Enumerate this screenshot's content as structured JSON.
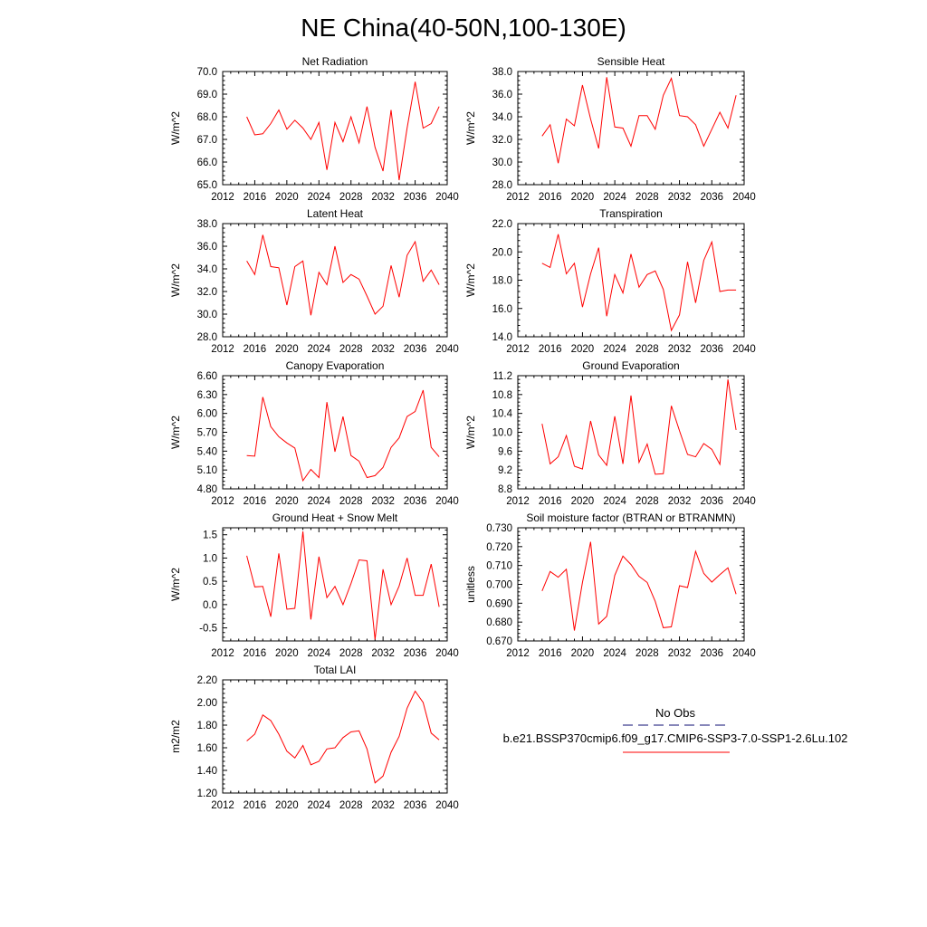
{
  "figure": {
    "title": "NE China(40-50N,100-130E)"
  },
  "legend": {
    "obs_label": "No Obs",
    "obs_color": "#3d3d8f",
    "model_label": "b.e21.BSSP370cmip6.f09_g17.CMIP6-SSP3-7.0-SSP1-2.6Lu.102",
    "model_color": "#ff0000"
  },
  "chart_data": [
    {
      "type": "line",
      "title": "Net Radiation",
      "ylabel": "W/m^2",
      "xlim": [
        2012,
        2040
      ],
      "ylim": [
        65.0,
        70.0
      ],
      "xticks": [
        "2012",
        "2016",
        "2020",
        "2024",
        "2028",
        "2032",
        "2036",
        "2040"
      ],
      "yticks": [
        "65.0",
        "66.0",
        "67.0",
        "68.0",
        "69.0",
        "70.0"
      ],
      "series": [
        {
          "color": "#ff0000",
          "x": [
            2015,
            2016,
            2017,
            2018,
            2019,
            2020,
            2021,
            2022,
            2023,
            2024,
            2025,
            2026,
            2027,
            2028,
            2029,
            2030,
            2031,
            2032,
            2033,
            2034,
            2035,
            2036,
            2037,
            2038,
            2039
          ],
          "y": [
            68.0,
            67.2,
            67.25,
            67.7,
            68.3,
            67.45,
            67.85,
            67.5,
            67.0,
            67.75,
            65.65,
            67.75,
            66.9,
            68.0,
            66.85,
            68.45,
            66.65,
            65.6,
            68.3,
            65.2,
            67.5,
            69.55,
            67.5,
            67.7,
            68.45
          ]
        }
      ]
    },
    {
      "type": "line",
      "title": "Sensible Heat",
      "ylabel": "W/m^2",
      "xlim": [
        2012,
        2040
      ],
      "ylim": [
        28.0,
        38.0
      ],
      "xticks": [
        "2012",
        "2016",
        "2020",
        "2024",
        "2028",
        "2032",
        "2036",
        "2040"
      ],
      "yticks": [
        "28.0",
        "30.0",
        "32.0",
        "34.0",
        "36.0",
        "38.0"
      ],
      "series": [
        {
          "color": "#ff0000",
          "x": [
            2015,
            2016,
            2017,
            2018,
            2019,
            2020,
            2021,
            2022,
            2023,
            2024,
            2025,
            2026,
            2027,
            2028,
            2029,
            2030,
            2031,
            2032,
            2033,
            2034,
            2035,
            2036,
            2037,
            2038,
            2039
          ],
          "y": [
            32.3,
            33.3,
            29.9,
            33.8,
            33.2,
            36.8,
            33.8,
            31.2,
            37.5,
            33.1,
            33.0,
            31.4,
            34.1,
            34.1,
            32.9,
            35.9,
            37.4,
            34.1,
            34.0,
            33.3,
            31.4,
            32.9,
            34.4,
            33.0,
            35.9
          ]
        }
      ]
    },
    {
      "type": "line",
      "title": "Latent Heat",
      "ylabel": "W/m^2",
      "xlim": [
        2012,
        2040
      ],
      "ylim": [
        28.0,
        38.0
      ],
      "xticks": [
        "2012",
        "2016",
        "2020",
        "2024",
        "2028",
        "2032",
        "2036",
        "2040"
      ],
      "yticks": [
        "28.0",
        "30.0",
        "32.0",
        "34.0",
        "36.0",
        "38.0"
      ],
      "series": [
        {
          "color": "#ff0000",
          "x": [
            2015,
            2016,
            2017,
            2018,
            2019,
            2020,
            2021,
            2022,
            2023,
            2024,
            2025,
            2026,
            2027,
            2028,
            2029,
            2030,
            2031,
            2032,
            2033,
            2034,
            2035,
            2036,
            2037,
            2038,
            2039
          ],
          "y": [
            34.7,
            33.5,
            37.0,
            34.2,
            34.1,
            30.8,
            34.2,
            34.7,
            29.9,
            33.7,
            32.6,
            36.0,
            32.8,
            33.5,
            33.1,
            31.6,
            30.0,
            30.7,
            34.3,
            31.5,
            35.2,
            36.4,
            32.9,
            33.9,
            32.6
          ]
        }
      ]
    },
    {
      "type": "line",
      "title": "Transpiration",
      "ylabel": "W/m^2",
      "xlim": [
        2012,
        2040
      ],
      "ylim": [
        14.0,
        22.0
      ],
      "xticks": [
        "2012",
        "2016",
        "2020",
        "2024",
        "2028",
        "2032",
        "2036",
        "2040"
      ],
      "yticks": [
        "14.0",
        "16.0",
        "18.0",
        "20.0",
        "22.0"
      ],
      "series": [
        {
          "color": "#ff0000",
          "x": [
            2015,
            2016,
            2017,
            2018,
            2019,
            2020,
            2021,
            2022,
            2023,
            2024,
            2025,
            2026,
            2027,
            2028,
            2029,
            2030,
            2031,
            2032,
            2033,
            2034,
            2035,
            2036,
            2037,
            2038,
            2039
          ],
          "y": [
            19.2,
            18.9,
            21.25,
            18.45,
            19.2,
            16.1,
            18.45,
            20.3,
            15.45,
            18.4,
            17.1,
            19.85,
            17.5,
            18.4,
            18.65,
            17.35,
            14.45,
            15.55,
            19.3,
            16.4,
            19.4,
            20.7,
            17.2,
            17.3,
            17.3
          ]
        }
      ]
    },
    {
      "type": "line",
      "title": "Canopy Evaporation",
      "ylabel": "W/m^2",
      "xlim": [
        2012,
        2040
      ],
      "ylim": [
        4.8,
        6.6
      ],
      "xticks": [
        "2012",
        "2016",
        "2020",
        "2024",
        "2028",
        "2032",
        "2036",
        "2040"
      ],
      "yticks": [
        "4.80",
        "5.10",
        "5.40",
        "5.70",
        "6.00",
        "6.30",
        "6.60"
      ],
      "series": [
        {
          "color": "#ff0000",
          "x": [
            2015,
            2016,
            2017,
            2018,
            2019,
            2020,
            2021,
            2022,
            2023,
            2024,
            2025,
            2026,
            2027,
            2028,
            2029,
            2030,
            2031,
            2032,
            2033,
            2034,
            2035,
            2036,
            2037,
            2038,
            2039
          ],
          "y": [
            5.33,
            5.32,
            6.26,
            5.79,
            5.63,
            5.53,
            5.45,
            4.93,
            5.11,
            4.98,
            6.18,
            5.39,
            5.95,
            5.33,
            5.24,
            4.98,
            5.01,
            5.14,
            5.46,
            5.61,
            5.95,
            6.03,
            6.37,
            5.46,
            5.31
          ]
        }
      ]
    },
    {
      "type": "line",
      "title": "Ground Evaporation",
      "ylabel": "W/m^2",
      "xlim": [
        2012,
        2040
      ],
      "ylim": [
        8.8,
        11.2
      ],
      "xticks": [
        "2012",
        "2016",
        "2020",
        "2024",
        "2028",
        "2032",
        "2036",
        "2040"
      ],
      "yticks": [
        "8.8",
        "9.2",
        "9.6",
        "10.0",
        "10.4",
        "10.8",
        "11.2"
      ],
      "series": [
        {
          "color": "#ff0000",
          "x": [
            2015,
            2016,
            2017,
            2018,
            2019,
            2020,
            2021,
            2022,
            2023,
            2024,
            2025,
            2026,
            2027,
            2028,
            2029,
            2030,
            2031,
            2032,
            2033,
            2034,
            2035,
            2036,
            2037,
            2038,
            2039
          ],
          "y": [
            10.18,
            9.33,
            9.48,
            9.93,
            9.28,
            9.22,
            10.24,
            9.52,
            9.3,
            10.34,
            9.33,
            10.78,
            9.36,
            9.75,
            9.11,
            9.12,
            10.56,
            10.03,
            9.53,
            9.48,
            9.76,
            9.64,
            9.32,
            11.12,
            10.05
          ]
        }
      ]
    },
    {
      "type": "line",
      "title": "Ground Heat + Snow Melt",
      "ylabel": "W/m^2",
      "xlim": [
        2012,
        2040
      ],
      "ylim": [
        -0.78,
        1.65
      ],
      "xticks": [
        "2012",
        "2016",
        "2020",
        "2024",
        "2028",
        "2032",
        "2036",
        "2040"
      ],
      "yticks": [
        "-0.5",
        "0.0",
        "0.5",
        "1.0",
        "1.5"
      ],
      "series": [
        {
          "color": "#ff0000",
          "x": [
            2015,
            2016,
            2017,
            2018,
            2019,
            2020,
            2021,
            2022,
            2023,
            2024,
            2025,
            2026,
            2027,
            2028,
            2029,
            2030,
            2031,
            2032,
            2033,
            2034,
            2035,
            2036,
            2037,
            2038,
            2039
          ],
          "y": [
            1.05,
            0.38,
            0.39,
            -0.26,
            1.1,
            -0.1,
            -0.08,
            1.57,
            -0.32,
            1.03,
            0.15,
            0.39,
            0.0,
            0.45,
            0.96,
            0.94,
            -0.75,
            0.76,
            0.0,
            0.4,
            1.0,
            0.2,
            0.2,
            0.87,
            -0.05
          ]
        }
      ]
    },
    {
      "type": "line",
      "title": "Soil moisture factor (BTRAN or BTRANMN)",
      "ylabel": "unitless",
      "xlim": [
        2012,
        2040
      ],
      "ylim": [
        0.67,
        0.73
      ],
      "xticks": [
        "2012",
        "2016",
        "2020",
        "2024",
        "2028",
        "2032",
        "2036",
        "2040"
      ],
      "yticks": [
        "0.670",
        "0.680",
        "0.690",
        "0.700",
        "0.710",
        "0.720",
        "0.730"
      ],
      "series": [
        {
          "color": "#ff0000",
          "x": [
            2015,
            2016,
            2017,
            2018,
            2019,
            2020,
            2021,
            2022,
            2023,
            2024,
            2025,
            2026,
            2027,
            2028,
            2029,
            2030,
            2031,
            2032,
            2033,
            2034,
            2035,
            2036,
            2037,
            2038,
            2039
          ],
          "y": [
            0.6965,
            0.7068,
            0.7038,
            0.708,
            0.6755,
            0.701,
            0.7225,
            0.679,
            0.683,
            0.7048,
            0.715,
            0.7105,
            0.7042,
            0.701,
            0.691,
            0.677,
            0.6775,
            0.6993,
            0.6983,
            0.7175,
            0.7058,
            0.7012,
            0.7052,
            0.7088,
            0.6948
          ]
        }
      ]
    },
    {
      "type": "line",
      "title": "Total LAI",
      "ylabel": "m2/m2",
      "xlim": [
        2012,
        2040
      ],
      "ylim": [
        1.2,
        2.2
      ],
      "xticks": [
        "2012",
        "2016",
        "2020",
        "2024",
        "2028",
        "2032",
        "2036",
        "2040"
      ],
      "yticks": [
        "1.20",
        "1.40",
        "1.60",
        "1.80",
        "2.00",
        "2.20"
      ],
      "series": [
        {
          "color": "#ff0000",
          "x": [
            2015,
            2016,
            2017,
            2018,
            2019,
            2020,
            2021,
            2022,
            2023,
            2024,
            2025,
            2026,
            2027,
            2028,
            2029,
            2030,
            2031,
            2032,
            2033,
            2034,
            2035,
            2036,
            2037,
            2038,
            2039
          ],
          "y": [
            1.66,
            1.72,
            1.89,
            1.84,
            1.72,
            1.57,
            1.51,
            1.62,
            1.45,
            1.48,
            1.59,
            1.6,
            1.69,
            1.74,
            1.75,
            1.59,
            1.29,
            1.35,
            1.56,
            1.7,
            1.95,
            2.1,
            2.0,
            1.73,
            1.67
          ]
        }
      ]
    }
  ]
}
